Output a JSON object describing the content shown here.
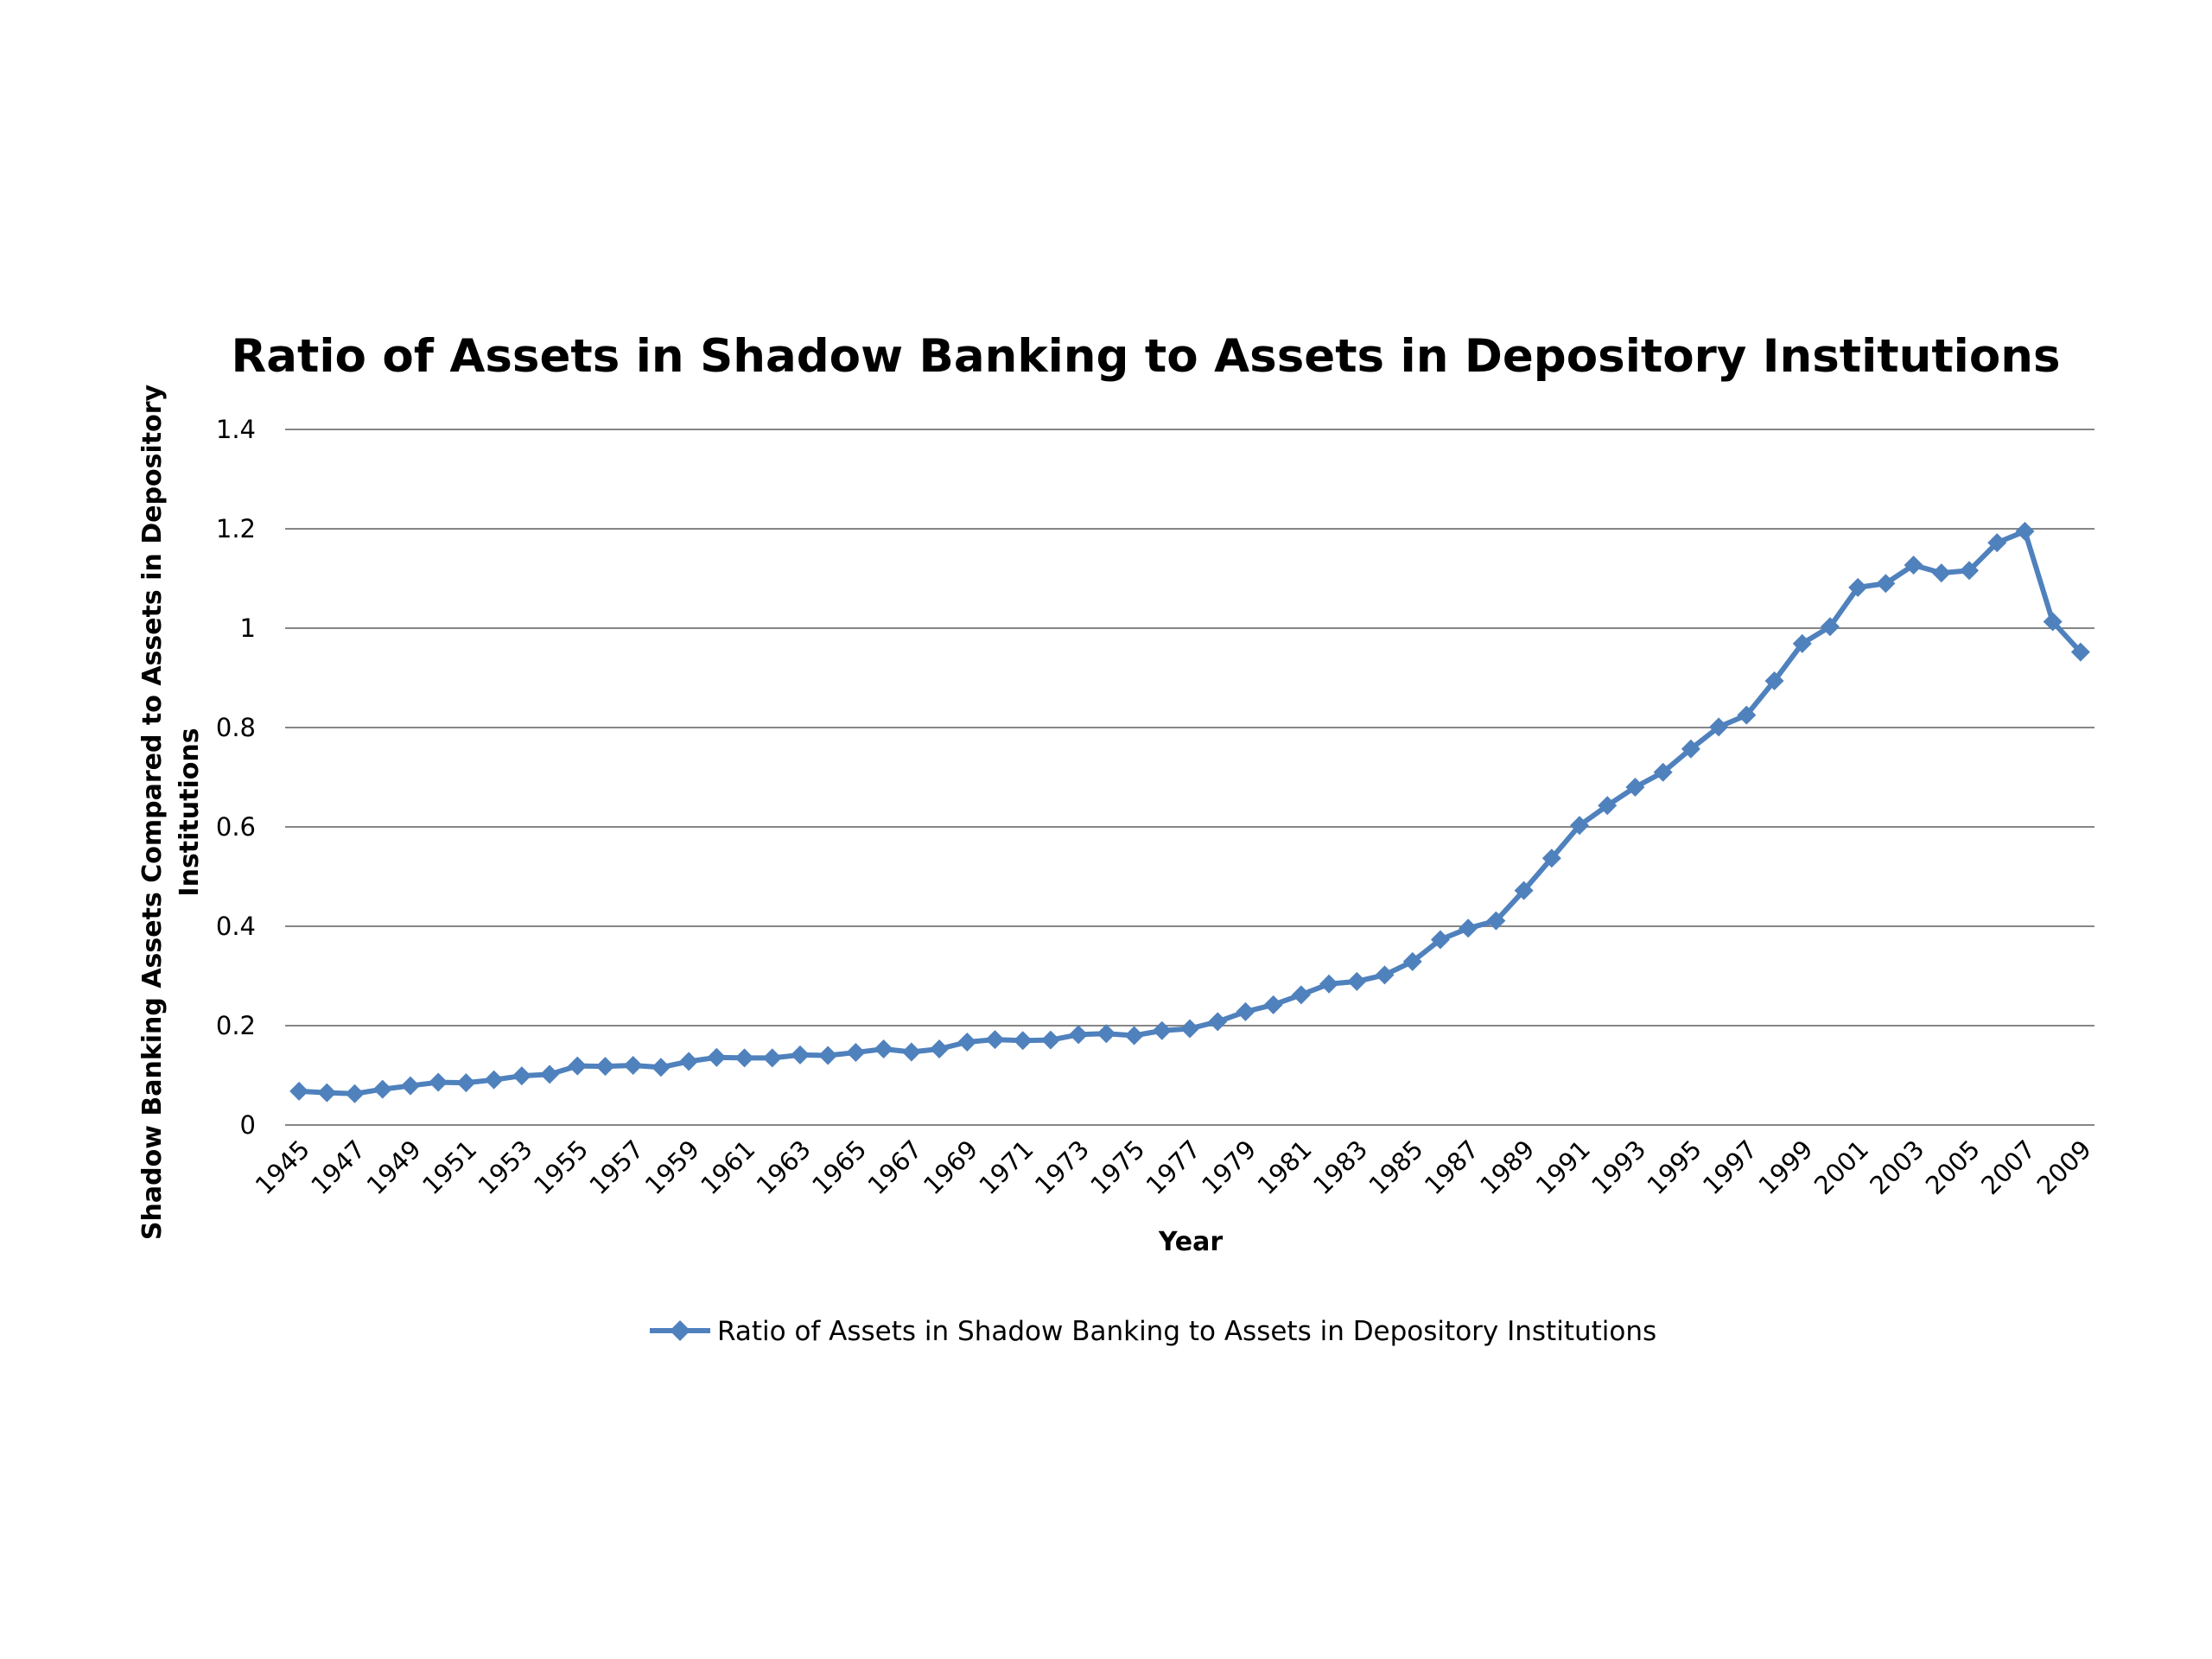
{
  "colors": {
    "series": "#4f81bd",
    "grid": "#868686",
    "text": "#000000",
    "background": "#ffffff"
  },
  "chart_data": {
    "type": "line",
    "title": "Ratio of Assets in Shadow Banking to Assets in Depository Institutions",
    "xlabel": "Year",
    "ylabel_lines": [
      "Shadow Banking Assets Compared to Assets in Depository",
      "Institutions"
    ],
    "ylim": [
      0,
      1.4
    ],
    "yticks": [
      "0",
      "0.2",
      "0.4",
      "0.6",
      "0.8",
      "1",
      "1.2",
      "1.4"
    ],
    "grid": "horizontal",
    "marker": "diamond",
    "legend": "bottom",
    "x": [
      1945,
      1946,
      1947,
      1948,
      1949,
      1950,
      1951,
      1952,
      1953,
      1954,
      1955,
      1956,
      1957,
      1958,
      1959,
      1960,
      1961,
      1962,
      1963,
      1964,
      1965,
      1966,
      1967,
      1968,
      1969,
      1970,
      1971,
      1972,
      1973,
      1974,
      1975,
      1976,
      1977,
      1978,
      1979,
      1980,
      1981,
      1982,
      1983,
      1984,
      1985,
      1986,
      1987,
      1988,
      1989,
      1990,
      1991,
      1992,
      1993,
      1994,
      1995,
      1996,
      1997,
      1998,
      1999,
      2000,
      2001,
      2002,
      2003,
      2004,
      2005,
      2006,
      2007,
      2008,
      2009
    ],
    "xtick_labels": [
      "1945",
      "1947",
      "1949",
      "1951",
      "1953",
      "1955",
      "1957",
      "1959",
      "1961",
      "1963",
      "1965",
      "1967",
      "1969",
      "1971",
      "1973",
      "1975",
      "1977",
      "1979",
      "1981",
      "1983",
      "1985",
      "1987",
      "1989",
      "1991",
      "1993",
      "1995",
      "1997",
      "1999",
      "2001",
      "2003",
      "2005",
      "2007",
      "2009"
    ],
    "series": [
      {
        "name": "Ratio of Assets in Shadow Banking to Assets in Depository Institutions",
        "values": [
          0.068,
          0.065,
          0.063,
          0.072,
          0.079,
          0.086,
          0.085,
          0.091,
          0.099,
          0.102,
          0.119,
          0.118,
          0.12,
          0.116,
          0.128,
          0.136,
          0.135,
          0.135,
          0.141,
          0.14,
          0.146,
          0.153,
          0.147,
          0.153,
          0.167,
          0.172,
          0.17,
          0.171,
          0.182,
          0.184,
          0.18,
          0.19,
          0.194,
          0.208,
          0.228,
          0.242,
          0.262,
          0.284,
          0.289,
          0.302,
          0.329,
          0.373,
          0.396,
          0.411,
          0.472,
          0.537,
          0.603,
          0.643,
          0.68,
          0.71,
          0.757,
          0.801,
          0.825,
          0.894,
          0.969,
          1.003,
          1.082,
          1.09,
          1.127,
          1.111,
          1.116,
          1.172,
          1.195,
          1.013,
          0.952
        ]
      }
    ]
  }
}
